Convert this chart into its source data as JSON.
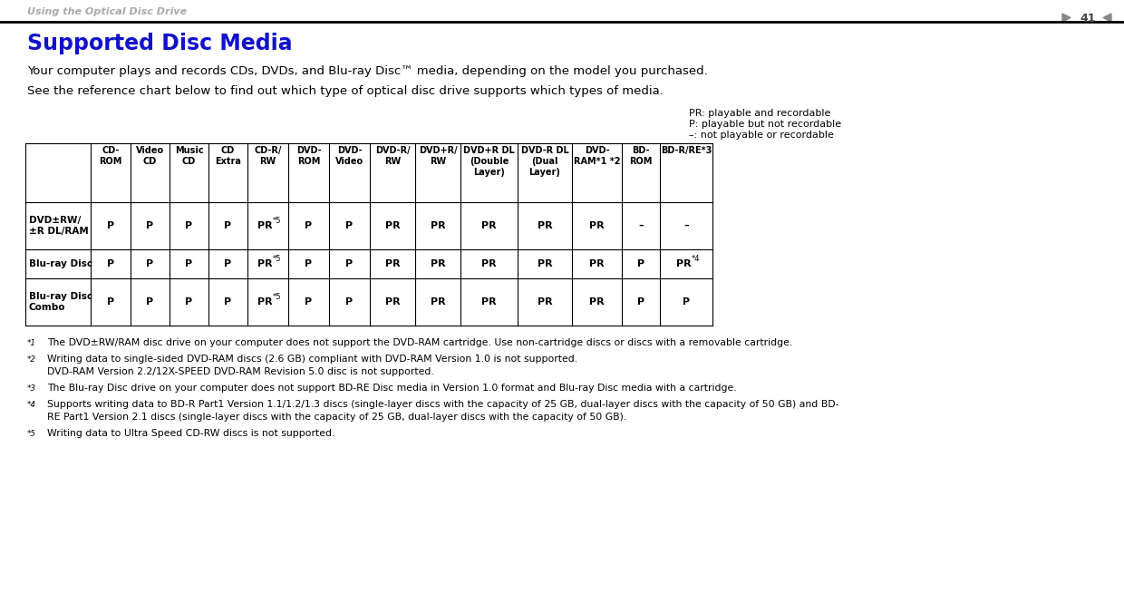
{
  "title": "Supported Disc Media",
  "title_color": "#1111CC",
  "bg_color": "#FFFFFF",
  "para1": "Your computer plays and records CDs, DVDs, and Blu-ray Disc™ media, depending on the model you purchased.",
  "para2": "See the reference chart below to find out which type of optical disc drive supports which types of media.",
  "legend_lines": [
    "PR: playable and recordable",
    "P: playable but not recordable",
    "–: not playable or recordable"
  ],
  "col_headers": [
    "CD-\nROM",
    "Video\nCD",
    "Music\nCD",
    "CD\nExtra",
    "CD-R/\nRW",
    "DVD-\nROM",
    "DVD-\nVideo",
    "DVD-R/\nRW",
    "DVD+R/\nRW",
    "DVD+R DL\n(Double\nLayer)",
    "DVD-R DL\n(Dual\nLayer)",
    "DVD-\nRAM*1 *2",
    "BD-\nROM",
    "BD-R/RE*3"
  ],
  "row_headers": [
    "DVD±RW/\n±R DL/RAM",
    "Blu-ray Disc",
    "Blu-ray Disc\nCombo"
  ],
  "table_data": [
    [
      "P",
      "P",
      "P",
      "P",
      "PR*5",
      "P",
      "P",
      "PR",
      "PR",
      "PR",
      "PR",
      "PR",
      "–",
      "–"
    ],
    [
      "P",
      "P",
      "P",
      "P",
      "PR*5",
      "P",
      "P",
      "PR",
      "PR",
      "PR",
      "PR",
      "PR",
      "P",
      "PR*4"
    ],
    [
      "P",
      "P",
      "P",
      "P",
      "PR*5",
      "P",
      "P",
      "PR",
      "PR",
      "PR",
      "PR",
      "PR",
      "P",
      "P"
    ]
  ],
  "footnotes": [
    {
      "marker": "*1",
      "lines": [
        "The DVD±RW/RAM disc drive on your computer does not support the DVD-RAM cartridge. Use non-cartridge discs or discs with a removable cartridge."
      ]
    },
    {
      "marker": "*2",
      "lines": [
        "Writing data to single-sided DVD-RAM discs (2.6 GB) compliant with DVD-RAM Version 1.0 is not supported.",
        "DVD-RAM Version 2.2/12X-SPEED DVD-RAM Revision 5.0 disc is not supported."
      ]
    },
    {
      "marker": "*3",
      "lines": [
        "The Blu-ray Disc drive on your computer does not support BD-RE Disc media in Version 1.0 format and Blu-ray Disc media with a cartridge."
      ]
    },
    {
      "marker": "*4",
      "lines": [
        "Supports writing data to BD-R Part1 Version 1.1/1.2/1.3 discs (single-layer discs with the capacity of 25 GB, dual-layer discs with the capacity of 50 GB) and BD-",
        "RE Part1 Version 2.1 discs (single-layer discs with the capacity of 25 GB, dual-layer discs with the capacity of 50 GB)."
      ]
    },
    {
      "marker": "*5",
      "lines": [
        "Writing data to Ultra Speed CD-RW discs is not supported."
      ]
    }
  ],
  "page_header": "Using the Optical Disc Drive",
  "page_num": "41"
}
